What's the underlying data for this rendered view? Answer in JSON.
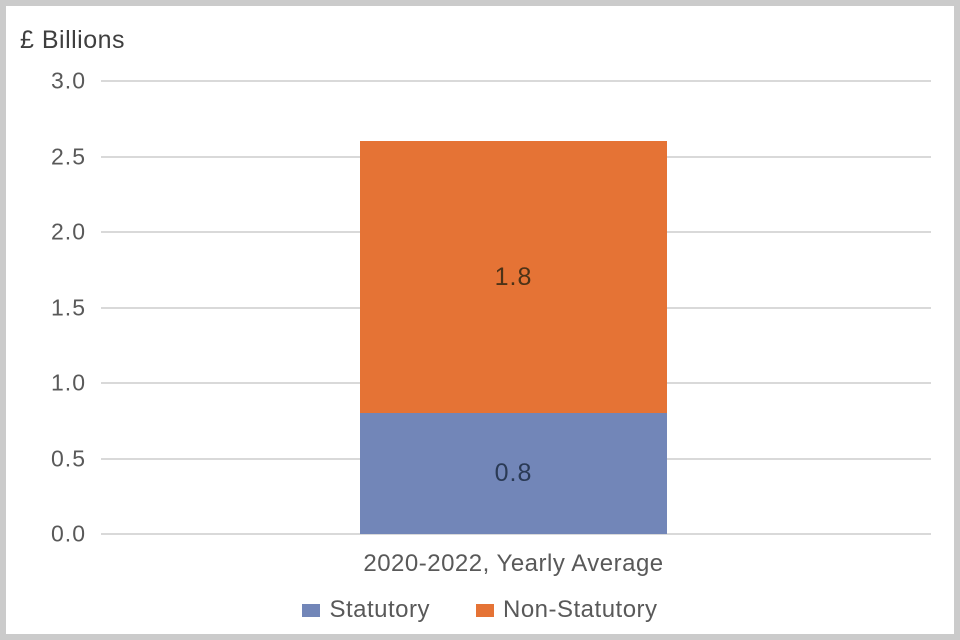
{
  "chart_data": {
    "type": "bar",
    "stacked": true,
    "title": "£ Billions",
    "xlabel": "",
    "ylabel": "£ Billions",
    "categories": [
      "2020-2022, Yearly Average"
    ],
    "series": [
      {
        "name": "Statutory",
        "values": [
          0.8
        ],
        "color": "#7286b8",
        "label_color": "#2a3a55"
      },
      {
        "name": "Non-Statutory",
        "values": [
          1.8
        ],
        "color": "#e57335",
        "label_color": "#4c3217"
      }
    ],
    "data_labels": [
      "0.8",
      "1.8"
    ],
    "ylim": [
      0,
      3.0
    ],
    "yticks": [
      0.0,
      0.5,
      1.0,
      1.5,
      2.0,
      2.5,
      3.0
    ],
    "grid": true,
    "legend_position": "bottom",
    "colors": {
      "gridline": "#d9d9d9",
      "tick_text": "#595959",
      "title_text": "#3f3f3f",
      "frame_border": "#cbcbcb"
    }
  },
  "legend": {
    "items": [
      {
        "label": "Statutory"
      },
      {
        "label": "Non-Statutory"
      }
    ]
  }
}
